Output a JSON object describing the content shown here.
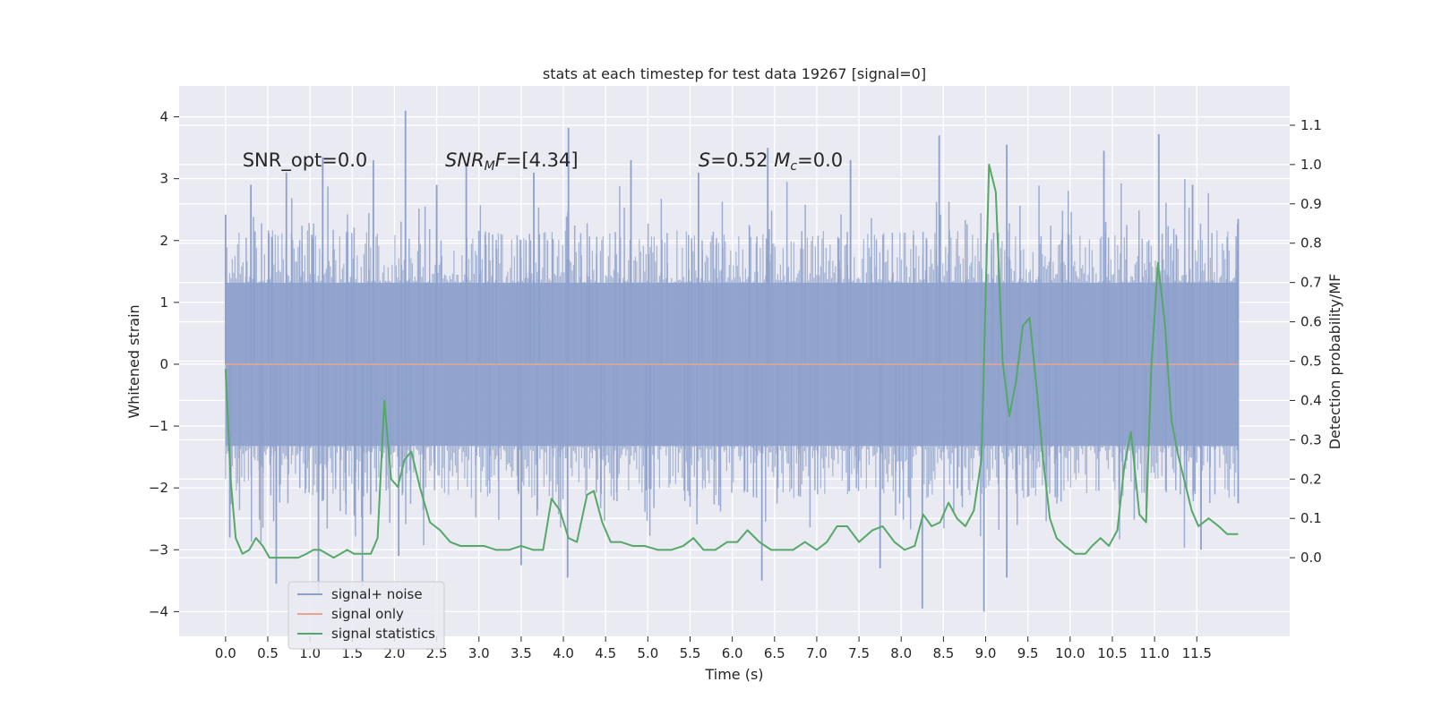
{
  "chart_data": {
    "type": "line",
    "title": "stats at each timestep for test data 19267 [signal=0]",
    "xlabel": "Time (s)",
    "ylabel": "Whitened strain",
    "ylabel_right": "Detection probability/MF",
    "xlim": [
      -0.55,
      12.6
    ],
    "ylim": [
      -4.4,
      4.5
    ],
    "ylim_right": [
      -0.2,
      1.2
    ],
    "x_ticks": [
      0.0,
      0.5,
      1.0,
      1.5,
      2.0,
      2.5,
      3.0,
      3.5,
      4.0,
      4.5,
      5.0,
      5.5,
      6.0,
      6.5,
      7.0,
      7.5,
      8.0,
      8.5,
      9.0,
      9.5,
      10.0,
      10.5,
      11.0,
      11.5
    ],
    "x_tick_labels": [
      "0.0",
      "0.5",
      "1.0",
      "1.5",
      "2.0",
      "2.5",
      "3.0",
      "3.5",
      "4.0",
      "4.5",
      "5.0",
      "5.5",
      "6.0",
      "6.5",
      "7.0",
      "7.5",
      "8.0",
      "8.5",
      "9.0",
      "9.5",
      "10.0",
      "10.5",
      "11.0",
      "11.5"
    ],
    "y_ticks": [
      -4,
      -3,
      -2,
      -1,
      0,
      1,
      2,
      3,
      4
    ],
    "y_tick_labels": [
      "−4",
      "−3",
      "−2",
      "−1",
      "0",
      "1",
      "2",
      "3",
      "4"
    ],
    "y_ticks_right": [
      0.0,
      0.1,
      0.2,
      0.3,
      0.4,
      0.5,
      0.6,
      0.7,
      0.8,
      0.9,
      1.0,
      1.1
    ],
    "y_tick_labels_right": [
      "0.0",
      "0.1",
      "0.2",
      "0.3",
      "0.4",
      "0.5",
      "0.6",
      "0.7",
      "0.8",
      "0.9",
      "1.0",
      "1.1"
    ],
    "grid": true,
    "legend_position": "lower-left",
    "annotations": [
      {
        "x": 0.2,
        "y": 3.2,
        "parts": [
          {
            "t": "SNR_opt=0.0"
          }
        ]
      },
      {
        "x": 2.6,
        "y": 3.2,
        "parts": [
          {
            "t": "SNR",
            "i": true
          },
          {
            "t": "M",
            "i": true,
            "sub": true
          },
          {
            "t": "F",
            "i": true
          },
          {
            "t": "=[4.34]"
          }
        ]
      },
      {
        "x": 5.6,
        "y": 3.2,
        "parts": [
          {
            "t": "S",
            "i": true
          },
          {
            "t": "=0.52   "
          },
          {
            "t": "M",
            "i": true
          },
          {
            "t": "c",
            "i": true,
            "sub": true
          },
          {
            "t": "=0.0"
          }
        ]
      }
    ],
    "series": [
      {
        "name": "signal+ noise",
        "color": "#8da0cb",
        "axis": "left",
        "kind": "noise-band",
        "x_range": [
          0.0,
          11.99
        ],
        "envelope": {
          "p50": 1.32,
          "p95": 2.0,
          "max": 4.1,
          "min": -4.0
        },
        "peaks": [
          {
            "x": 0.0,
            "y": 2.42
          },
          {
            "x": 0.3,
            "y": 2.9
          },
          {
            "x": 0.72,
            "y": 3.1
          },
          {
            "x": 1.15,
            "y": 3.35
          },
          {
            "x": 1.75,
            "y": 3.3
          },
          {
            "x": 2.13,
            "y": 4.1
          },
          {
            "x": 2.5,
            "y": 2.9
          },
          {
            "x": 2.85,
            "y": 3.2
          },
          {
            "x": 3.65,
            "y": 3.1
          },
          {
            "x": 4.06,
            "y": 3.82
          },
          {
            "x": 4.8,
            "y": 3.3
          },
          {
            "x": 5.6,
            "y": 3.1
          },
          {
            "x": 6.42,
            "y": 3.5
          },
          {
            "x": 7.4,
            "y": 3.3
          },
          {
            "x": 8.45,
            "y": 3.7
          },
          {
            "x": 9.25,
            "y": 3.55
          },
          {
            "x": 10.4,
            "y": 3.45
          },
          {
            "x": 11.05,
            "y": 3.72
          },
          {
            "x": 11.45,
            "y": 2.9
          },
          {
            "x": 11.99,
            "y": 2.35
          }
        ],
        "troughs": [
          {
            "x": 0.05,
            "y": -2.8
          },
          {
            "x": 0.6,
            "y": -3.55
          },
          {
            "x": 1.1,
            "y": -3.7
          },
          {
            "x": 1.62,
            "y": -3.6
          },
          {
            "x": 2.05,
            "y": -3.1
          },
          {
            "x": 3.5,
            "y": -3.25
          },
          {
            "x": 4.05,
            "y": -3.45
          },
          {
            "x": 6.35,
            "y": -3.5
          },
          {
            "x": 7.75,
            "y": -3.3
          },
          {
            "x": 8.25,
            "y": -3.95
          },
          {
            "x": 8.98,
            "y": -4.0
          },
          {
            "x": 9.25,
            "y": -3.45
          },
          {
            "x": 11.55,
            "y": -3.0
          },
          {
            "x": 11.99,
            "y": -2.25
          }
        ]
      },
      {
        "name": "signal only",
        "color": "#e5a58f",
        "axis": "left",
        "x": [
          0.0,
          11.99
        ],
        "y": [
          0.0,
          0.0
        ]
      },
      {
        "name": "signal statistics",
        "color": "#55a868",
        "axis": "right",
        "x": [
          0.0,
          0.06,
          0.12,
          0.2,
          0.28,
          0.36,
          0.44,
          0.52,
          0.62,
          0.74,
          0.86,
          0.96,
          1.04,
          1.12,
          1.2,
          1.28,
          1.36,
          1.44,
          1.52,
          1.6,
          1.68,
          1.72,
          1.8,
          1.88,
          1.96,
          2.04,
          2.12,
          2.2,
          2.3,
          2.42,
          2.54,
          2.66,
          2.78,
          2.92,
          3.06,
          3.2,
          3.36,
          3.5,
          3.64,
          3.76,
          3.86,
          3.96,
          4.06,
          4.16,
          4.28,
          4.36,
          4.46,
          4.56,
          4.68,
          4.82,
          4.96,
          5.12,
          5.28,
          5.42,
          5.54,
          5.66,
          5.8,
          5.94,
          6.06,
          6.18,
          6.32,
          6.46,
          6.6,
          6.72,
          6.86,
          7.0,
          7.12,
          7.24,
          7.36,
          7.5,
          7.66,
          7.78,
          7.92,
          8.04,
          8.16,
          8.26,
          8.36,
          8.46,
          8.56,
          8.66,
          8.76,
          8.86,
          8.95,
          9.04,
          9.12,
          9.2,
          9.28,
          9.36,
          9.44,
          9.52,
          9.6,
          9.68,
          9.76,
          9.84,
          9.94,
          10.06,
          10.18,
          10.26,
          10.36,
          10.46,
          10.56,
          10.64,
          10.72,
          10.82,
          10.9,
          10.96,
          11.04,
          11.12,
          11.2,
          11.28,
          11.36,
          11.44,
          11.52,
          11.64,
          11.76,
          11.86,
          11.99
        ],
        "y": [
          0.48,
          0.2,
          0.05,
          0.01,
          0.02,
          0.05,
          0.03,
          0.0,
          0.0,
          0.0,
          0.0,
          0.01,
          0.02,
          0.02,
          0.01,
          0.0,
          0.01,
          0.02,
          0.01,
          0.01,
          0.01,
          0.01,
          0.05,
          0.4,
          0.2,
          0.18,
          0.25,
          0.27,
          0.18,
          0.09,
          0.07,
          0.04,
          0.03,
          0.03,
          0.03,
          0.02,
          0.02,
          0.03,
          0.02,
          0.02,
          0.15,
          0.12,
          0.05,
          0.04,
          0.16,
          0.17,
          0.09,
          0.04,
          0.04,
          0.03,
          0.03,
          0.02,
          0.02,
          0.03,
          0.05,
          0.02,
          0.02,
          0.04,
          0.04,
          0.07,
          0.04,
          0.02,
          0.02,
          0.02,
          0.04,
          0.02,
          0.04,
          0.08,
          0.08,
          0.04,
          0.07,
          0.08,
          0.04,
          0.02,
          0.03,
          0.11,
          0.08,
          0.09,
          0.14,
          0.1,
          0.08,
          0.12,
          0.25,
          1.0,
          0.93,
          0.5,
          0.36,
          0.45,
          0.59,
          0.61,
          0.44,
          0.25,
          0.1,
          0.05,
          0.03,
          0.01,
          0.01,
          0.03,
          0.05,
          0.03,
          0.07,
          0.23,
          0.32,
          0.11,
          0.09,
          0.48,
          0.75,
          0.6,
          0.35,
          0.26,
          0.19,
          0.12,
          0.08,
          0.1,
          0.08,
          0.06,
          0.06
        ]
      }
    ]
  }
}
